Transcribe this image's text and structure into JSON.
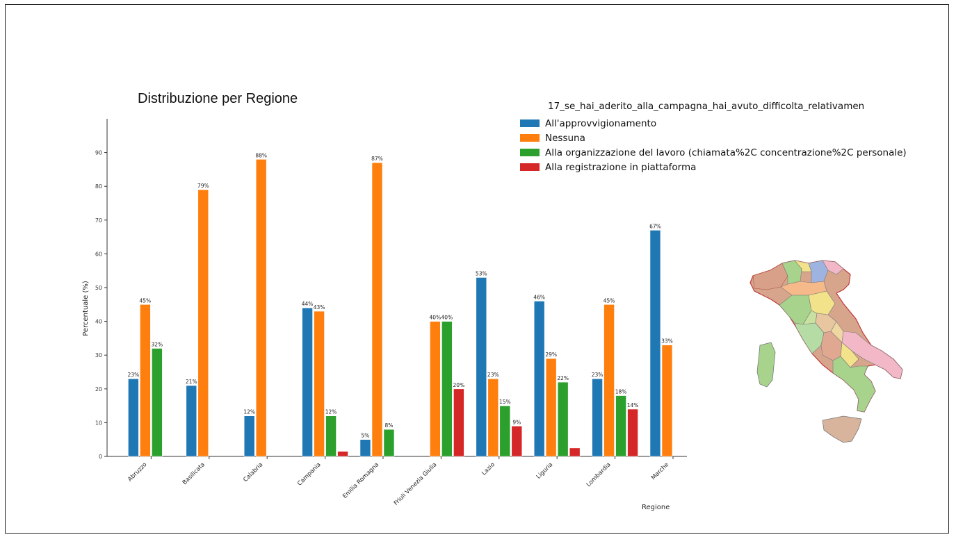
{
  "slide_title": "Distribuzione per Regione",
  "legend": {
    "title": "17_se_hai_aderito_alla_campagna_hai_avuto_difficolta_relativamen"
  },
  "chart_data": {
    "type": "bar",
    "xlabel": "Regione",
    "ylabel": "Percentuale (%)",
    "ylim": [
      0,
      100
    ],
    "yticks": [
      0,
      10,
      20,
      30,
      40,
      50,
      60,
      70,
      80,
      90
    ],
    "grid": false,
    "legend_position": "top-right",
    "categories": [
      "Abruzzo",
      "Basilicata",
      "Calabria",
      "Campania",
      "Emilia Romagna",
      "Friuli Venezia Giulia",
      "Lazio",
      "Liguria",
      "Lombardia",
      "Marche"
    ],
    "series": [
      {
        "name": "All'approvvigionamento",
        "color": "#1f77b4",
        "values": [
          23,
          21,
          12,
          44,
          5,
          null,
          53,
          46,
          23,
          67
        ],
        "labels": [
          "23%",
          "21%",
          "12%",
          "44%",
          "5%",
          "",
          "53%",
          "46%",
          "23%",
          "67%"
        ]
      },
      {
        "name": "Nessuna",
        "color": "#ff7f0e",
        "values": [
          45,
          79,
          88,
          43,
          87,
          40,
          23,
          29,
          45,
          33
        ],
        "labels": [
          "45%",
          "79%",
          "88%",
          "43%",
          "87%",
          "40%",
          "23%",
          "29%",
          "45%",
          "33%"
        ]
      },
      {
        "name": "Alla organizzazione del lavoro (chiamata%2C concentrazione%2C personale)",
        "color": "#2ca02c",
        "values": [
          32,
          null,
          null,
          12,
          8,
          40,
          15,
          22,
          18,
          null
        ],
        "labels": [
          "32%",
          "",
          "",
          "12%",
          "8%",
          "40%",
          "15%",
          "22%",
          "18%",
          ""
        ]
      },
      {
        "name": "Alla registrazione in piattaforma",
        "color": "#d62728",
        "values": [
          null,
          null,
          null,
          1.5,
          null,
          20,
          9,
          2.5,
          14,
          null
        ],
        "labels": [
          "",
          "",
          "",
          "",
          "",
          "20%",
          "9%",
          "",
          "14%",
          ""
        ]
      }
    ]
  },
  "map": {
    "fill": "#d7a58c",
    "stroke": "#c03a3a"
  }
}
